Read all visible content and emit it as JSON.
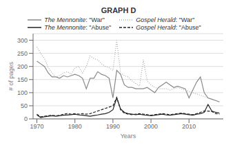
{
  "chart_data": {
    "type": "line",
    "title": "GRAPH D",
    "x_label": "Years",
    "y_label": "# of pages",
    "x": [
      1970,
      1971,
      1972,
      1973,
      1974,
      1975,
      1976,
      1977,
      1978,
      1979,
      1980,
      1981,
      1982,
      1983,
      1984,
      1985,
      1986,
      1987,
      1988,
      1989,
      1990,
      1991,
      1992,
      1993,
      1994,
      1995,
      1996,
      1997,
      1998,
      1999,
      2000,
      2001,
      2002,
      2003,
      2004,
      2005,
      2006,
      2007,
      2008,
      2009,
      2010,
      2011,
      2012,
      2013,
      2014,
      2015,
      2016,
      2017,
      2018
    ],
    "series": [
      {
        "name": "The Mennonite: \"War\"",
        "color": "#888888",
        "line_style": "solid",
        "values": [
          220,
          210,
          200,
          175,
          160,
          160,
          155,
          165,
          160,
          165,
          170,
          165,
          155,
          115,
          155,
          155,
          180,
          170,
          165,
          155,
          80,
          185,
          170,
          130,
          120,
          120,
          115,
          115,
          115,
          120,
          110,
          100,
          120,
          130,
          140,
          130,
          120,
          125,
          120,
          115,
          80,
          110,
          140,
          160,
          100,
          80,
          75,
          70,
          65
        ]
      },
      {
        "name": "Gospel Herald: \"War\"",
        "color": "#aaaaaa",
        "line_style": "dotted",
        "values": [
          275,
          250,
          230,
          195,
          175,
          160,
          165,
          175,
          180,
          170,
          195,
          200,
          175,
          200,
          240,
          230,
          225,
          210,
          200,
          195,
          185,
          300,
          175,
          165,
          160,
          145,
          135,
          125,
          225,
          145,
          130,
          120,
          115,
          115,
          115,
          110,
          115,
          120,
          115,
          110,
          105,
          100,
          95,
          90,
          85,
          80,
          75,
          70,
          65
        ]
      },
      {
        "name": "The Mennonite: \"Abuse\"",
        "color": "#222222",
        "line_style": "solid",
        "values": [
          15,
          5,
          8,
          10,
          12,
          10,
          12,
          14,
          15,
          16,
          18,
          15,
          14,
          12,
          10,
          13,
          15,
          18,
          20,
          25,
          35,
          80,
          38,
          25,
          20,
          18,
          16,
          18,
          15,
          14,
          12,
          14,
          16,
          18,
          15,
          14,
          16,
          18,
          20,
          18,
          16,
          14,
          18,
          20,
          25,
          55,
          30,
          25,
          22
        ]
      },
      {
        "name": "Gospel Herald: \"Abuse\"",
        "color": "#222222",
        "line_style": "dashed",
        "values": [
          18,
          8,
          10,
          12,
          14,
          12,
          14,
          18,
          20,
          18,
          20,
          18,
          20,
          18,
          20,
          25,
          30,
          35,
          40,
          45,
          50,
          82,
          35,
          22,
          18,
          16,
          18,
          20,
          18,
          16,
          14,
          16,
          18,
          20,
          18,
          16,
          18,
          20,
          22,
          20,
          18,
          16,
          20,
          25,
          30,
          30,
          28,
          20,
          18
        ]
      }
    ],
    "xlim": [
      1969,
      2019
    ],
    "xticks": [
      1970,
      1980,
      1990,
      2000,
      2010
    ],
    "ylim": [
      0,
      325
    ],
    "yticks": [
      0,
      50,
      100,
      150,
      200,
      250,
      300
    ],
    "grid": true,
    "legend": "top"
  }
}
